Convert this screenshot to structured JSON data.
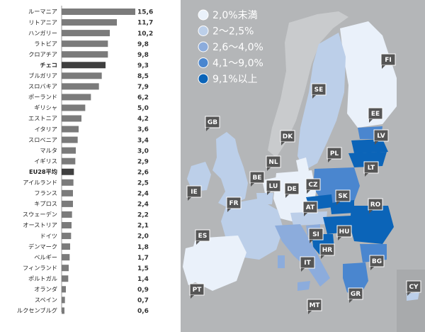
{
  "chart_data": {
    "type": "bar",
    "orientation": "horizontal",
    "categories": [
      "ルーマニア",
      "リトアニア",
      "ハンガリー",
      "ラトビア",
      "クロアチア",
      "チェコ",
      "ブルガリア",
      "スロバキア",
      "ポーランド",
      "ギリシャ",
      "エストニア",
      "イタリア",
      "スロベニア",
      "マルタ",
      "イギリス",
      "EU28平均",
      "アイルランド",
      "フランス",
      "キプロス",
      "スウェーデン",
      "オーストリア",
      "ドイツ",
      "デンマーク",
      "ベルギー",
      "フィンランド",
      "ポルトガル",
      "オランダ",
      "スペイン",
      "ルクセンブルグ"
    ],
    "values": [
      15.6,
      11.7,
      10.2,
      9.8,
      9.8,
      9.3,
      8.5,
      7.9,
      6.2,
      5.0,
      4.2,
      3.6,
      3.4,
      3.0,
      2.9,
      2.6,
      2.5,
      2.4,
      2.4,
      2.2,
      2.1,
      2.0,
      1.8,
      1.7,
      1.5,
      1.4,
      0.9,
      0.7,
      0.6
    ],
    "value_labels": [
      "15,6",
      "11,7",
      "10,2",
      "9,8",
      "9,8",
      "9,3",
      "8,5",
      "7,9",
      "6,2",
      "5,0",
      "4,2",
      "3,6",
      "3,4",
      "3,0",
      "2,9",
      "2,6",
      "2,5",
      "2,4",
      "2,4",
      "2,2",
      "2,1",
      "2,0",
      "1,8",
      "1,7",
      "1,5",
      "1,4",
      "0,9",
      "0,7",
      "0,6"
    ],
    "highlighted": [
      "チェコ",
      "EU28平均"
    ],
    "xlim": [
      0,
      16
    ],
    "grid": false,
    "colors": {
      "bar": "#7b7b7b",
      "highlight": "#3f3f3f"
    }
  },
  "map": {
    "legend": [
      {
        "label": "2,0%未満",
        "color": "#eaf1fa"
      },
      {
        "label": "2〜2,5%",
        "color": "#bccfe9"
      },
      {
        "label": "2,6〜4,0%",
        "color": "#8cacdc"
      },
      {
        "label": "4,1〜9,0%",
        "color": "#4a86cf"
      },
      {
        "label": "9,1%以上",
        "color": "#0b64b8"
      }
    ],
    "background": "#b4b6b8",
    "country_codes": [
      "FI",
      "SE",
      "EE",
      "LV",
      "GB",
      "DK",
      "LT",
      "PL",
      "NL",
      "BE",
      "IE",
      "LU",
      "DE",
      "CZ",
      "SK",
      "FR",
      "AT",
      "RO",
      "HU",
      "SI",
      "ES",
      "HR",
      "IT",
      "BG",
      "PT",
      "GR",
      "CY",
      "MT"
    ]
  }
}
